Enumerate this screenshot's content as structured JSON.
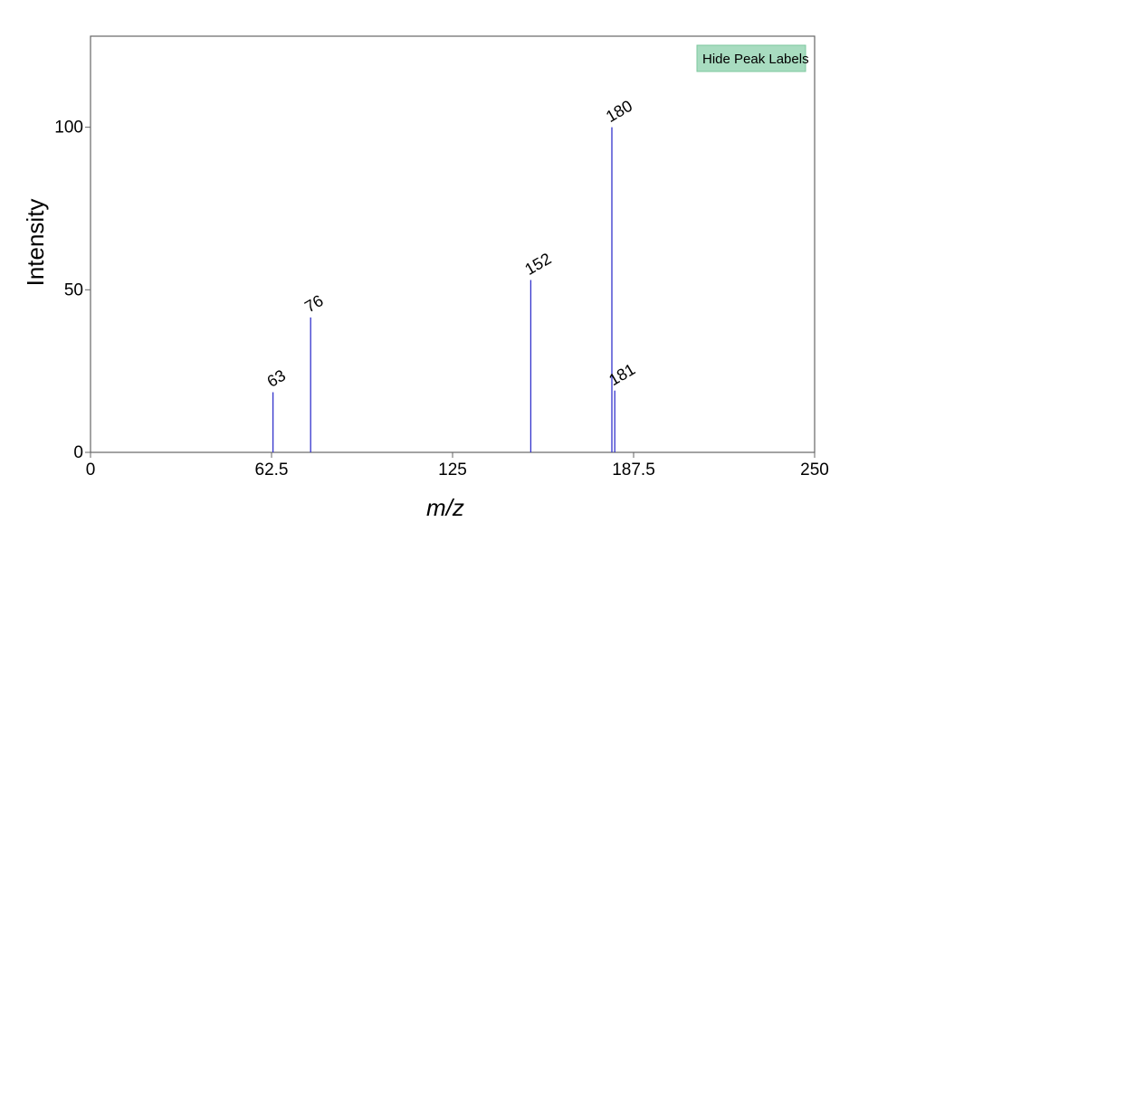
{
  "chart_data": {
    "type": "bar",
    "xlabel": "m/z",
    "ylabel": "Intensity",
    "xlim": [
      0,
      250
    ],
    "ylim": [
      0,
      128
    ],
    "x_ticks": [
      0,
      62.5,
      125,
      187.5,
      250
    ],
    "x_tick_labels": [
      "0",
      "62.5",
      "125",
      "187.5",
      "250"
    ],
    "y_ticks": [
      0,
      50,
      100
    ],
    "y_tick_labels": [
      "0",
      "50",
      "100"
    ],
    "grid": false,
    "peak_color": "#3333cc",
    "peaks": [
      {
        "mz": 63,
        "intensity": 18.5,
        "label": "63"
      },
      {
        "mz": 76,
        "intensity": 41.5,
        "label": "76"
      },
      {
        "mz": 152,
        "intensity": 53,
        "label": "152"
      },
      {
        "mz": 180,
        "intensity": 100,
        "label": "180"
      },
      {
        "mz": 181,
        "intensity": 19,
        "label": "181"
      }
    ]
  },
  "controls": {
    "toggle_labels_button": "Hide Peak Labels",
    "button_color": "#a8dcc0",
    "button_border_color": "#7cc79e"
  }
}
